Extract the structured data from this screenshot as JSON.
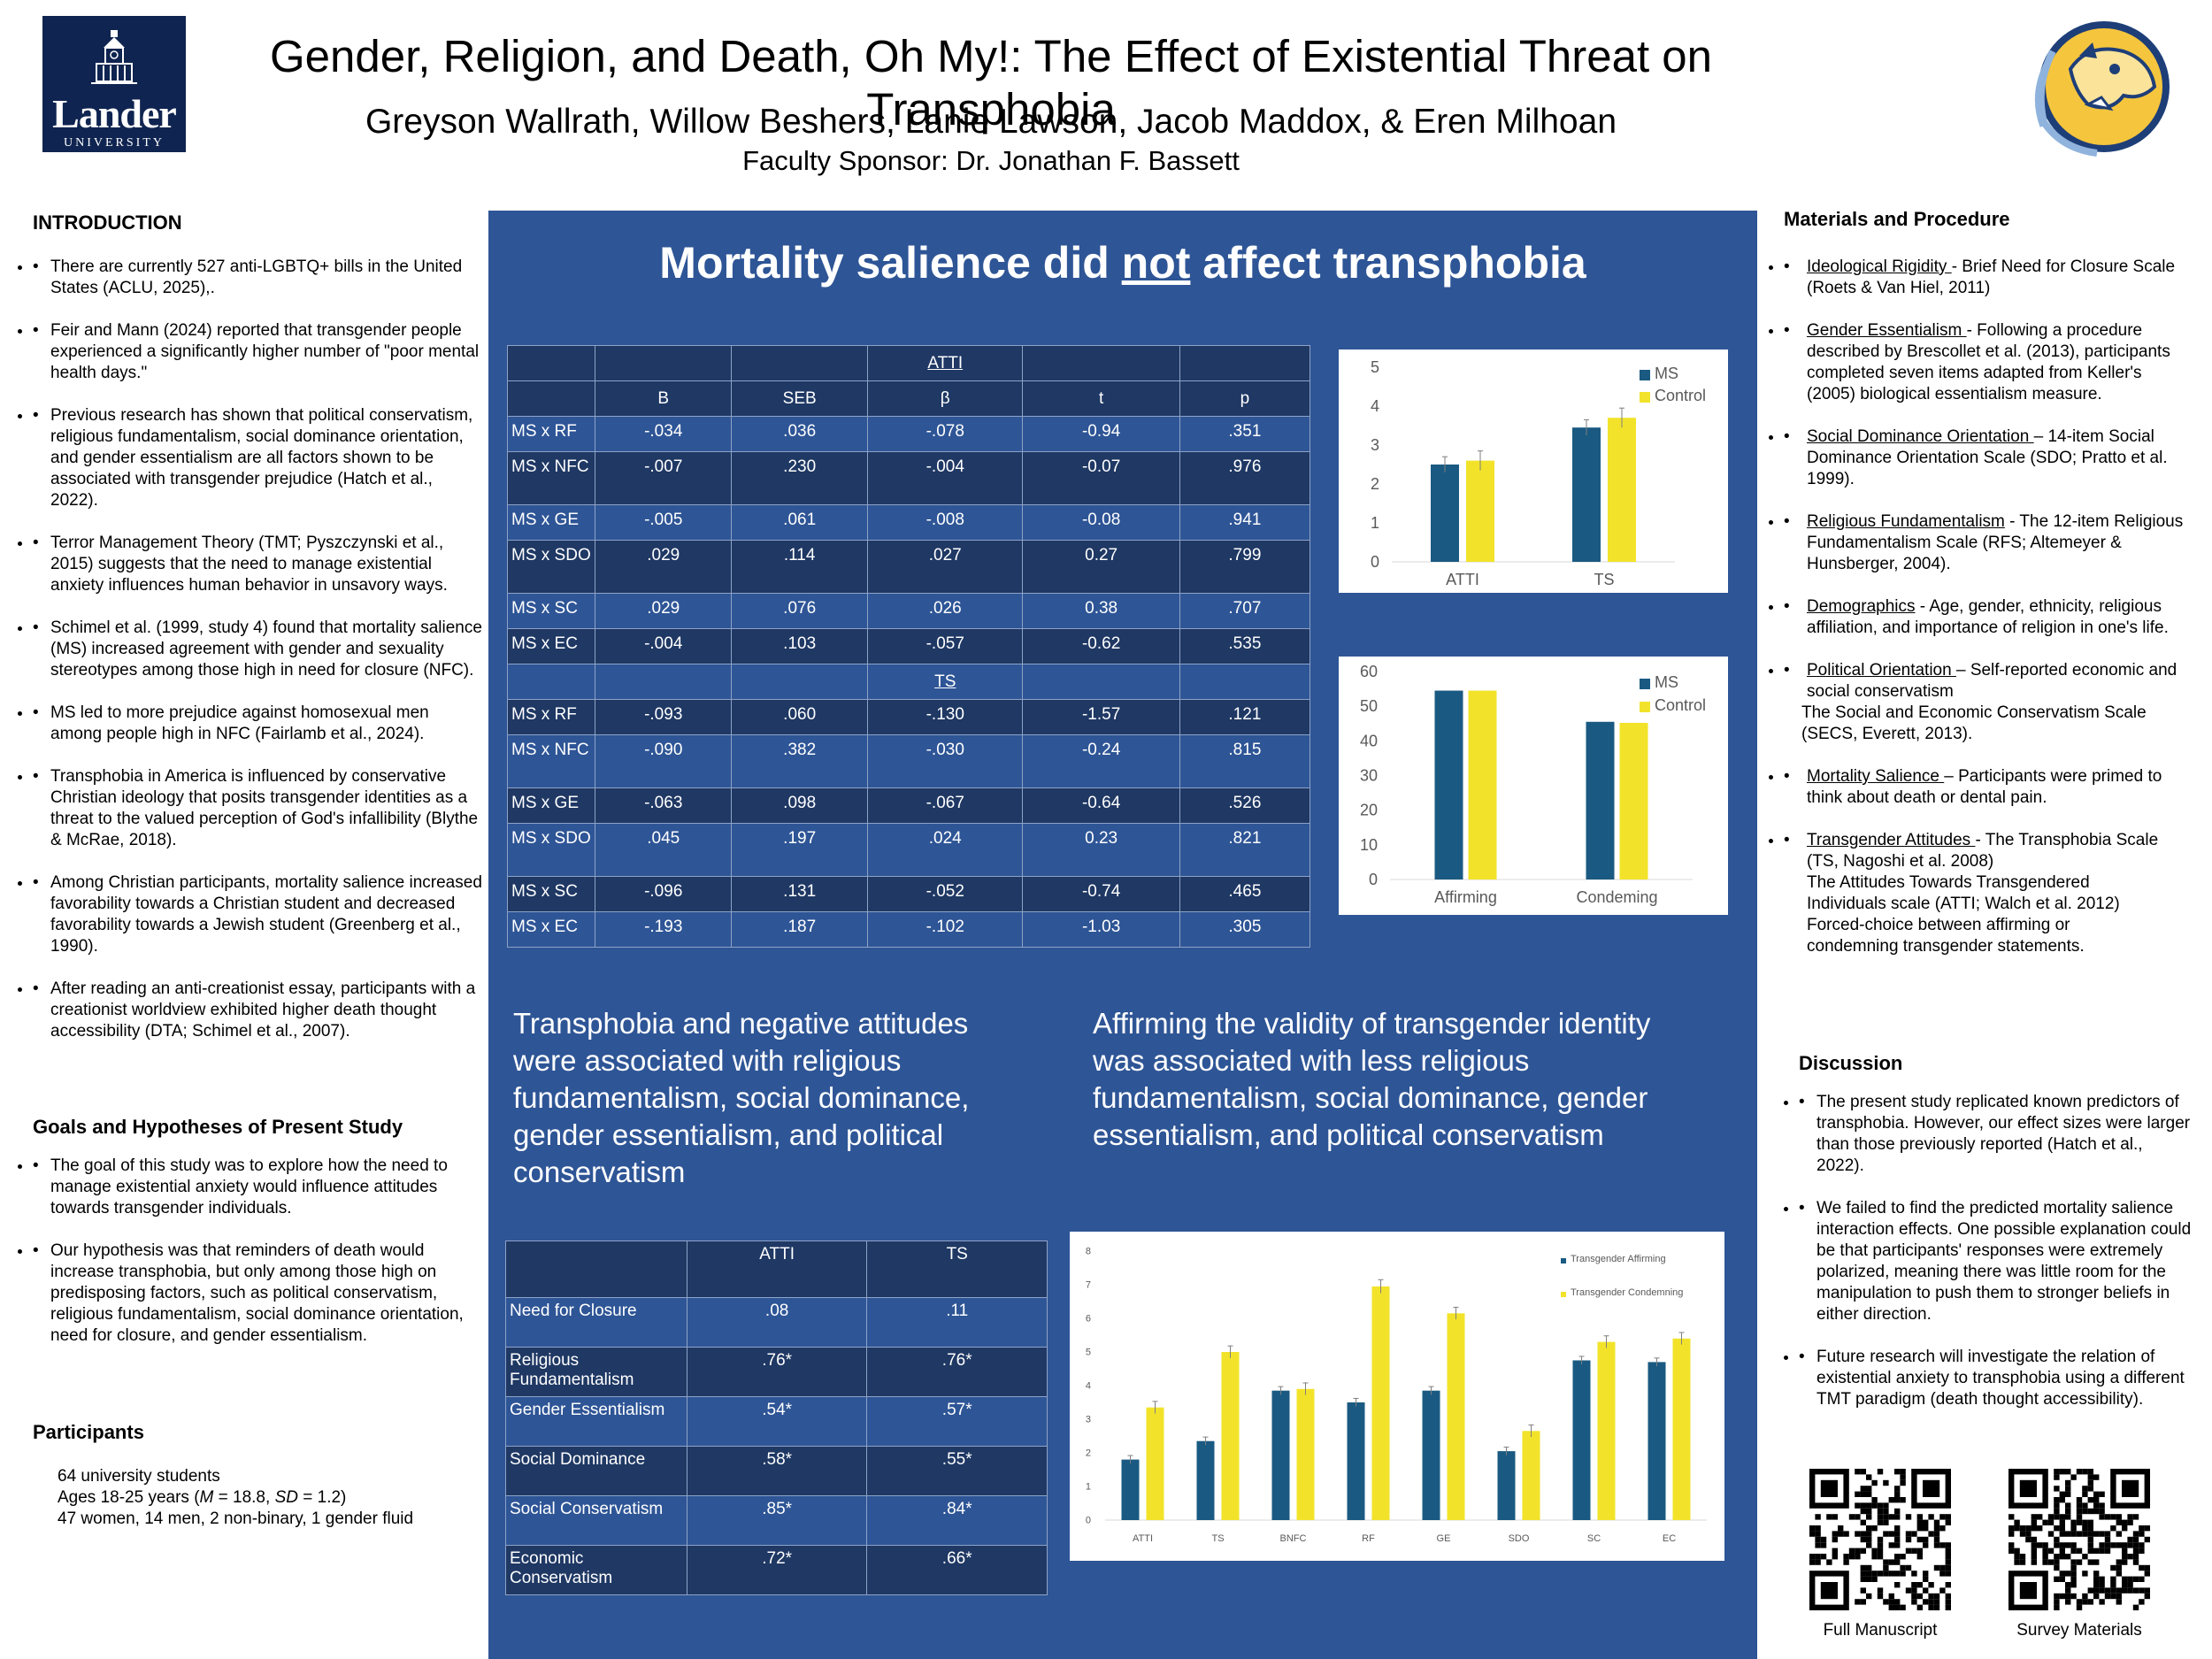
{
  "header": {
    "logo_name": "Lander",
    "logo_sub": "UNIVERSITY",
    "title": "Gender, Religion, and Death, Oh My!: The Effect of Existential Threat on Transphobia",
    "authors": "Greyson Wallrath, Willow Beshers, Lanie Lawson, Jacob Maddox, & Eren Milhoan",
    "sponsor": "Faculty Sponsor: Dr. Jonathan F. Bassett"
  },
  "intro": {
    "heading": "INTRODUCTION",
    "bullets": [
      "There are currently 527 anti-LGBTQ+ bills in the United States (ACLU, 2025),.",
      "Feir and Mann (2024) reported that transgender people experienced a significantly higher number of \"poor mental health days.\"",
      "Previous research has shown that political conservatism, religious fundamentalism, social dominance orientation, and gender essentialism are all factors shown to be associated with transgender prejudice (Hatch et al., 2022).",
      "Terror Management Theory (TMT; Pyszczynski et al., 2015) suggests that the need to manage existential anxiety influences human behavior in unsavory ways.",
      "Schimel et al. (1999, study 4) found that mortality salience (MS) increased agreement with gender and sexuality stereotypes among those high in need for closure (NFC).",
      "MS led to more prejudice against homosexual men among people high in NFC (Fairlamb et al., 2024).",
      "Transphobia in America is influenced by conservative Christian ideology that posits transgender identities as a threat to the valued perception of God's infallibility (Blythe & McRae, 2018).",
      "Among Christian participants, mortality salience increased favorability towards a Christian student and decreased favorability towards a Jewish student (Greenberg et al., 1990).",
      "After reading an anti-creationist essay, participants with a creationist worldview exhibited higher death thought accessibility (DTA; Schimel et al., 2007)."
    ]
  },
  "goals": {
    "heading": "Goals and Hypotheses of Present Study",
    "bullets": [
      "The goal of this study was to explore how the need to manage existential anxiety would influence attitudes towards transgender individuals.",
      " Our hypothesis was that reminders of death would increase transphobia, but only among those high on predisposing factors, such as political conservatism, religious fundamentalism, social dominance orientation, need for closure, and gender essentialism."
    ]
  },
  "participants": {
    "heading": "Participants",
    "line1": "64 university students",
    "line2_pre": "Ages 18-25 years (",
    "line2_m": "M",
    "line2_mid": " = 18.8, ",
    "line2_sd": "SD",
    "line2_post": " = 1.2)",
    "line3": "47 women, 14 men, 2 non-binary, 1 gender fluid"
  },
  "center": {
    "claim_pre": "Mortality salience did ",
    "claim_not": "not",
    "claim_post": " affect transphobia",
    "text_left": "Transphobia and negative attitudes were associated with religious fundamentalism, social dominance, gender essentialism, and political conservatism",
    "text_right": "Affirming the validity of transgender identity was associated with less religious fundamentalism, social dominance, gender essentialism, and political conservatism"
  },
  "regression_table": {
    "section_atti": "ATTI",
    "section_ts": "TS",
    "headers": [
      "",
      "B",
      "SEB",
      "β",
      "t",
      "p"
    ],
    "atti_rows": [
      [
        "MS x RF",
        "-.034",
        ".036",
        "-.078",
        "-0.94",
        ".351"
      ],
      [
        "MS x NFC",
        "-.007",
        ".230",
        "-.004",
        "-0.07",
        ".976"
      ],
      [
        "MS x GE",
        "-.005",
        ".061",
        "-.008",
        "-0.08",
        ".941"
      ],
      [
        "MS x SDO",
        ".029",
        ".114",
        ".027",
        "0.27",
        ".799"
      ],
      [
        "MS x SC",
        ".029",
        ".076",
        ".026",
        "0.38",
        ".707"
      ],
      [
        "MS x EC",
        "-.004",
        ".103",
        "-.057",
        "-0.62",
        ".535"
      ]
    ],
    "ts_rows": [
      [
        "MS x RF",
        "-.093",
        ".060",
        "-.130",
        "-1.57",
        ".121"
      ],
      [
        "MS x NFC",
        "-.090",
        ".382",
        "-.030",
        "-0.24",
        ".815"
      ],
      [
        "MS x GE",
        "-.063",
        ".098",
        "-.067",
        "-0.64",
        ".526"
      ],
      [
        "MS x SDO",
        ".045",
        ".197",
        ".024",
        "0.23",
        ".821"
      ],
      [
        "MS x SC",
        "-.096",
        ".131",
        "-.052",
        "-0.74",
        ".465"
      ],
      [
        "MS x EC",
        "-.193",
        ".187",
        "-.102",
        "-1.03",
        ".305"
      ]
    ]
  },
  "corr_table": {
    "headers": [
      "",
      "ATTI",
      "TS"
    ],
    "rows": [
      [
        "Need for Closure",
        ".08",
        ".11"
      ],
      [
        "Religious Fundamentalism",
        ".76*",
        ".76*"
      ],
      [
        "Gender Essentialism",
        ".54*",
        ".57*"
      ],
      [
        "Social Dominance",
        ".58*",
        ".55*"
      ],
      [
        "Social Conservatism",
        ".85*",
        ".84*"
      ],
      [
        "Economic Conservatism",
        ".72*",
        ".66*"
      ]
    ]
  },
  "chart_data": [
    {
      "type": "bar",
      "categories": [
        "ATTI",
        "TS"
      ],
      "series": [
        {
          "name": "MS",
          "values": [
            2.5,
            3.45
          ]
        },
        {
          "name": "Control",
          "values": [
            2.6,
            3.7
          ]
        }
      ],
      "errors": [
        [
          0.2,
          0.2
        ],
        [
          0.25,
          0.25
        ]
      ],
      "ylim": [
        0,
        5
      ],
      "yticks": [
        0,
        1,
        2,
        3,
        4,
        5
      ],
      "colors": [
        "#1a5a82",
        "#f2e32a"
      ],
      "legend": "top-right"
    },
    {
      "type": "bar",
      "categories": [
        "Affirming",
        "Condeming"
      ],
      "series": [
        {
          "name": "MS",
          "values": [
            54.5,
            45.5
          ]
        },
        {
          "name": "Control",
          "values": [
            54.5,
            45.2
          ]
        }
      ],
      "ylim": [
        0,
        60
      ],
      "yticks": [
        0,
        10,
        20,
        30,
        40,
        50,
        60
      ],
      "colors": [
        "#1a5a82",
        "#f2e32a"
      ],
      "legend": "top-right"
    },
    {
      "type": "bar",
      "categories": [
        "ATTI",
        "TS",
        "BNFC",
        "RF",
        "GE",
        "SDO",
        "SC",
        "EC"
      ],
      "series": [
        {
          "name": "Transgender Affirming",
          "values": [
            1.8,
            2.35,
            3.85,
            3.5,
            3.85,
            2.05,
            4.75,
            4.7
          ]
        },
        {
          "name": "Transgender Condemning",
          "values": [
            3.35,
            5.0,
            3.9,
            6.95,
            6.15,
            2.65,
            5.3,
            5.4
          ]
        }
      ],
      "errors": [
        [
          0.12,
          0.12,
          0.12,
          0.12,
          0.12,
          0.12,
          0.12,
          0.12
        ],
        [
          0.18,
          0.18,
          0.18,
          0.2,
          0.18,
          0.18,
          0.18,
          0.18
        ]
      ],
      "ylim": [
        0,
        8
      ],
      "yticks": [
        0,
        1,
        2,
        3,
        4,
        5,
        6,
        7,
        8
      ],
      "colors": [
        "#1a5a82",
        "#f2e32a"
      ],
      "legend": "top-right"
    }
  ],
  "materials": {
    "heading": "Materials and Procedure",
    "items": [
      {
        "term": "Ideological Rigidity ",
        "text": "- Brief Need for Closure Scale (Roets & Van Hiel, 2011)"
      },
      {
        "term": "Gender Essentialism ",
        "text": "-  Following a procedure described by Brescollet et al. (2013), participants completed seven items adapted from Keller's (2005) biological essentialism measure."
      },
      {
        "term": "Social Dominance Orientation ",
        "text": "– 14-item Social Dominance Orientation Scale (SDO; Pratto et al. 1999)."
      },
      {
        "term": "Religious Fundamentalism",
        "text": " - The 12-item Religious Fundamentalism Scale (RFS; Altemeyer & Hunsberger, 2004)."
      },
      {
        "term": "Demographics",
        "text": " - Age, gender, ethnicity, religious affiliation, and importance of religion in one's life."
      },
      {
        "term": "Political Orientation ",
        "text": "– Self-reported economic and social conservatism"
      },
      {
        "term": "Mortality Salience ",
        "text": "– Participants were primed to think about death or dental pain."
      },
      {
        "term": "Transgender Attitudes ",
        "text": "- The Transphobia Scale (TS, Nagoshi et al. 2008)"
      }
    ],
    "political_extra": "The Social and Economic Conservatism Scale (SECS, Everett, 2013).",
    "attitudes_extra": "The Attitudes Towards Transgendered Individuals scale (ATTI; Walch et al. 2012) Forced-choice between affirming or condemning transgender statements."
  },
  "discussion": {
    "heading": "Discussion",
    "bullets": [
      "The present study replicated known predictors of transphobia. However, our effect sizes were larger than those previously reported (Hatch et al., 2022).",
      "We failed to find the predicted mortality salience interaction effects. One possible explanation could be that participants' responses were extremely polarized, meaning there was little room for the manipulation to push them to stronger beliefs in either direction.",
      "Future research will investigate the relation of existential anxiety to transphobia using a different TMT paradigm (death thought accessibility)."
    ]
  },
  "qr": {
    "left_label": "Full Manuscript",
    "right_label": "Survey Materials"
  }
}
